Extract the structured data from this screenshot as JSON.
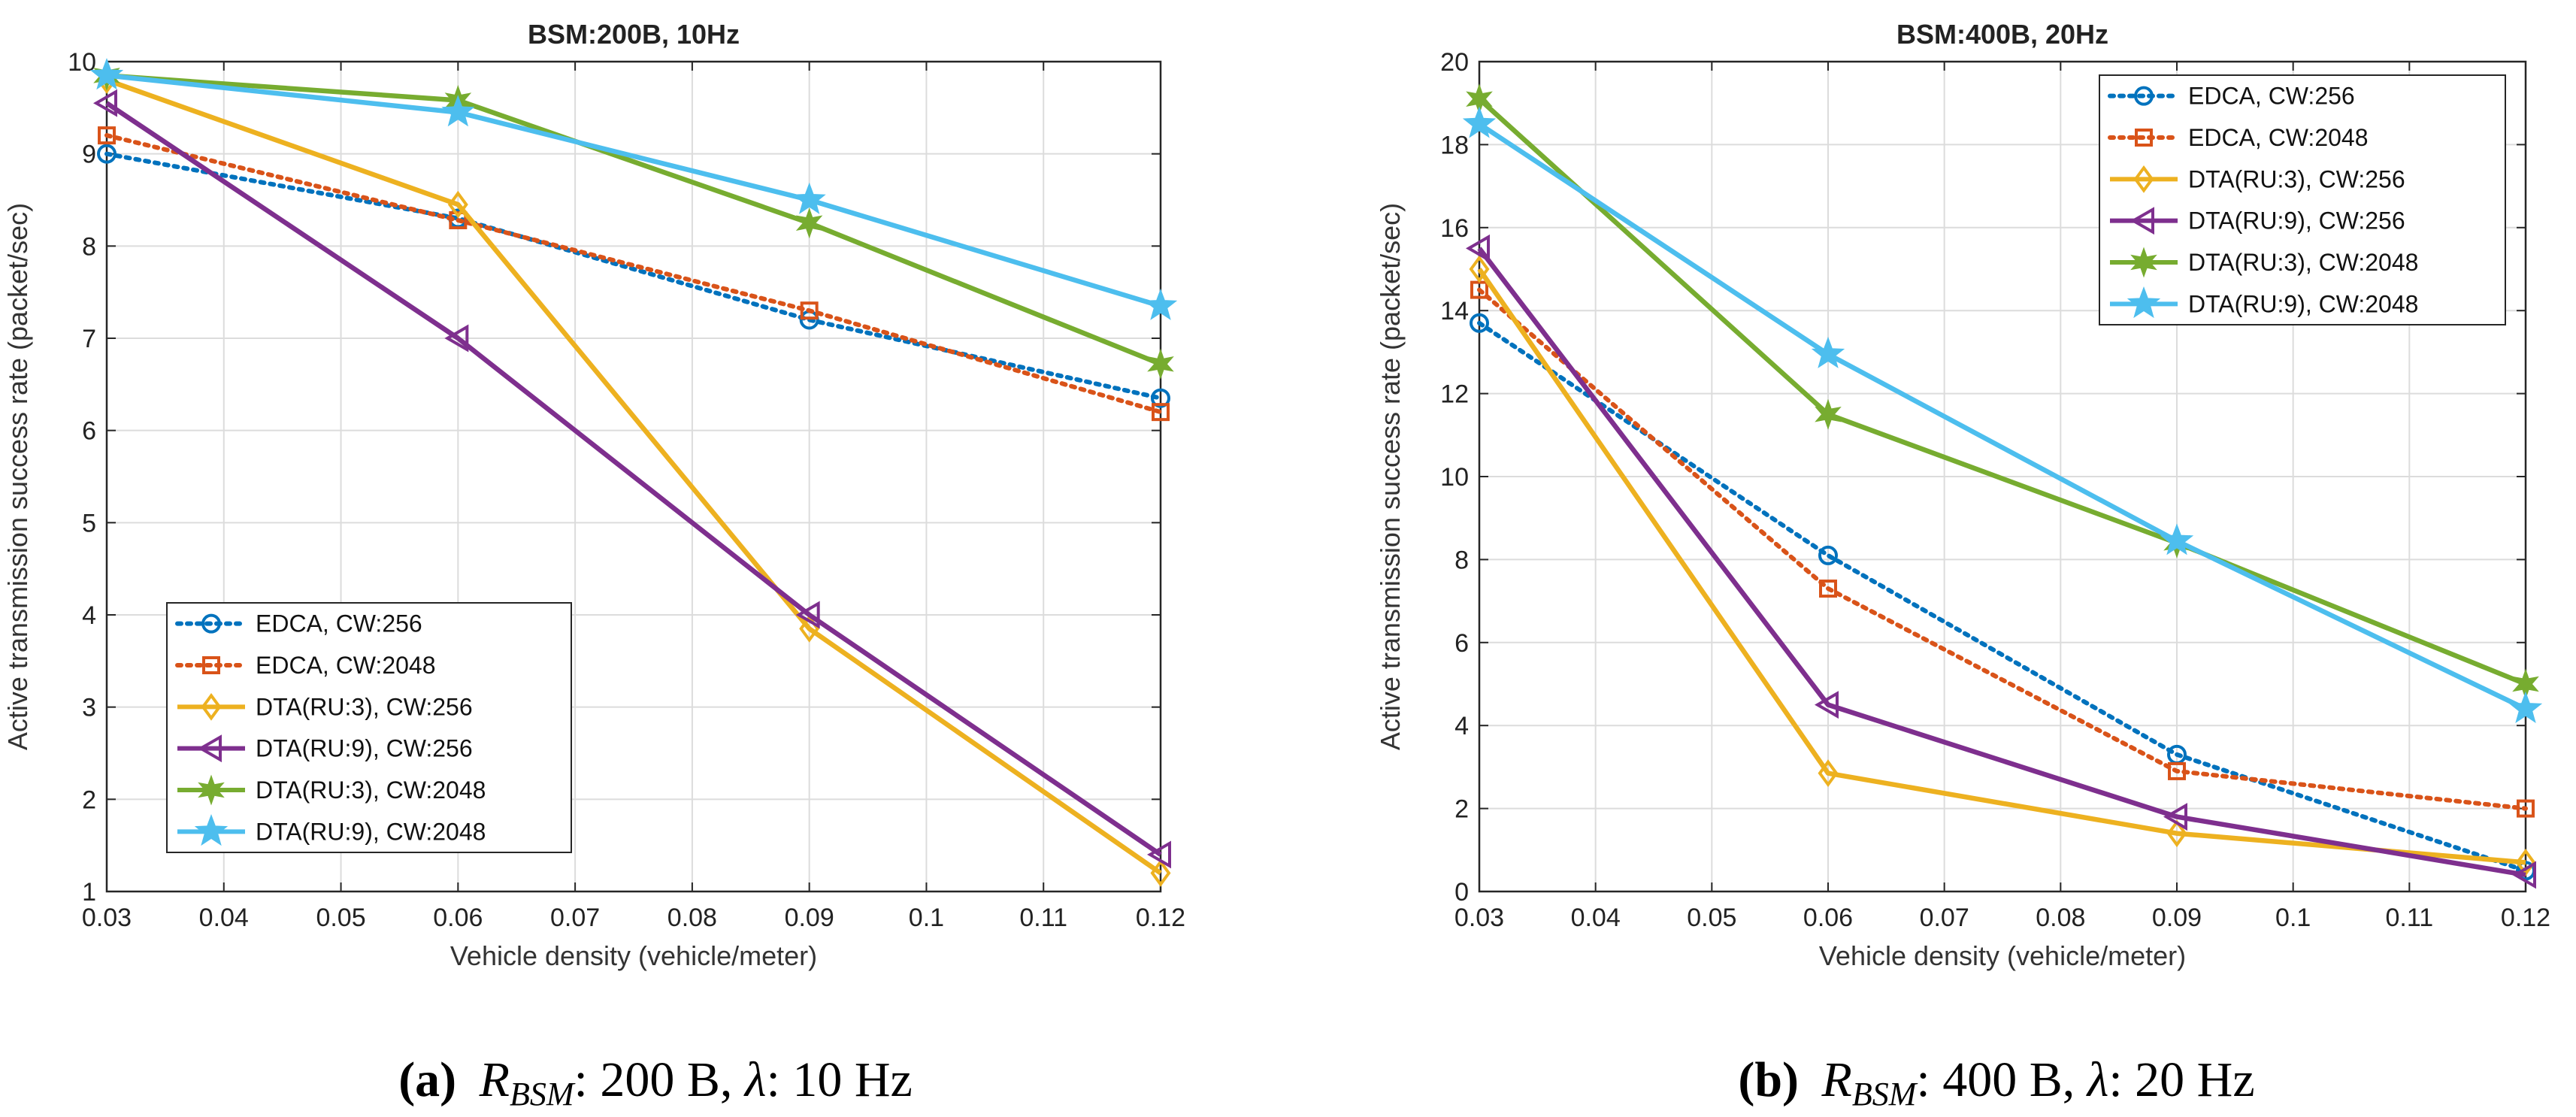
{
  "colors": {
    "EDCA256": "#0072BD",
    "EDCA2048": "#D95319",
    "DTA3_256": "#EDB120",
    "DTA9_256": "#7E2F8E",
    "DTA3_2048": "#77AC30",
    "DTA9_2048": "#4DBEEE"
  },
  "captions": [
    {
      "letter": "(a)",
      "sym": "R",
      "sub": "BSM",
      "rest1": ": 200 B, ",
      "lambda": "λ",
      "rest2": ": 10 Hz"
    },
    {
      "letter": "(b)",
      "sym": "R",
      "sub": "BSM",
      "rest1": ": 400 B, ",
      "lambda": "λ",
      "rest2": ": 20 Hz"
    }
  ],
  "chart_data": [
    {
      "type": "line",
      "title": "BSM:200B, 10Hz",
      "xlabel": "Vehicle density (vehicle/meter)",
      "ylabel": "Active transmission success rate (packet/sec)",
      "xlim": [
        0.03,
        0.12
      ],
      "ylim": [
        1,
        10
      ],
      "xticks": [
        0.03,
        0.04,
        0.05,
        0.06,
        0.07,
        0.08,
        0.09,
        0.1,
        0.11,
        0.12
      ],
      "xtick_labels": [
        "0.03",
        "0.04",
        "0.05",
        "0.06",
        "0.07",
        "0.08",
        "0.09",
        "0.1",
        "0.11",
        "0.12"
      ],
      "yticks": [
        1,
        2,
        3,
        4,
        5,
        6,
        7,
        8,
        9,
        10
      ],
      "ytick_labels": [
        "1",
        "2",
        "3",
        "4",
        "5",
        "6",
        "7",
        "8",
        "9",
        "10"
      ],
      "grid": true,
      "legend_position": "bottom-left",
      "x": [
        0.03,
        0.06,
        0.09,
        0.12
      ],
      "series": [
        {
          "name": "EDCA, CW:256",
          "values": [
            9.0,
            8.3,
            7.2,
            6.35
          ],
          "color": "#0072BD",
          "dash": "dotted",
          "marker": "circle"
        },
        {
          "name": "EDCA, CW:2048",
          "values": [
            9.2,
            8.28,
            7.3,
            6.2
          ],
          "color": "#D95319",
          "dash": "dotted",
          "marker": "square"
        },
        {
          "name": "DTA(RU:3), CW:256",
          "values": [
            9.8,
            8.45,
            3.85,
            1.2
          ],
          "color": "#EDB120",
          "dash": "solid",
          "marker": "diamond"
        },
        {
          "name": "DTA(RU:9), CW:256",
          "values": [
            9.55,
            7.0,
            4.0,
            1.4
          ],
          "color": "#7E2F8E",
          "dash": "solid",
          "marker": "triangle-left"
        },
        {
          "name": "DTA(RU:3), CW:2048",
          "values": [
            9.85,
            9.58,
            8.25,
            6.72
          ],
          "color": "#77AC30",
          "dash": "solid",
          "marker": "star6"
        },
        {
          "name": "DTA(RU:9), CW:2048",
          "values": [
            9.85,
            9.45,
            8.5,
            7.35
          ],
          "color": "#4DBEEE",
          "dash": "solid",
          "marker": "star5"
        }
      ]
    },
    {
      "type": "line",
      "title": "BSM:400B, 20Hz",
      "xlabel": "Vehicle density (vehicle/meter)",
      "ylabel": "Active transmission success rate (packet/sec)",
      "xlim": [
        0.03,
        0.12
      ],
      "ylim": [
        0,
        20
      ],
      "xticks": [
        0.03,
        0.04,
        0.05,
        0.06,
        0.07,
        0.08,
        0.09,
        0.1,
        0.11,
        0.12
      ],
      "xtick_labels": [
        "0.03",
        "0.04",
        "0.05",
        "0.06",
        "0.07",
        "0.08",
        "0.09",
        "0.1",
        "0.11",
        "0.12"
      ],
      "yticks": [
        0,
        2,
        4,
        6,
        8,
        10,
        12,
        14,
        16,
        18,
        20
      ],
      "ytick_labels": [
        "0",
        "2",
        "4",
        "6",
        "8",
        "10",
        "12",
        "14",
        "16",
        "18",
        "20"
      ],
      "grid": true,
      "legend_position": "top-right",
      "x": [
        0.03,
        0.06,
        0.09,
        0.12
      ],
      "series": [
        {
          "name": "EDCA, CW:256",
          "values": [
            13.7,
            8.1,
            3.3,
            0.5
          ],
          "color": "#0072BD",
          "dash": "dotted",
          "marker": "circle"
        },
        {
          "name": "EDCA, CW:2048",
          "values": [
            14.5,
            7.3,
            2.9,
            2.0
          ],
          "color": "#D95319",
          "dash": "dotted",
          "marker": "square"
        },
        {
          "name": "DTA(RU:3), CW:256",
          "values": [
            15.0,
            2.85,
            1.4,
            0.7
          ],
          "color": "#EDB120",
          "dash": "solid",
          "marker": "diamond"
        },
        {
          "name": "DTA(RU:9), CW:256",
          "values": [
            15.5,
            4.5,
            1.8,
            0.4
          ],
          "color": "#7E2F8E",
          "dash": "solid",
          "marker": "triangle-left"
        },
        {
          "name": "DTA(RU:3), CW:2048",
          "values": [
            19.1,
            11.5,
            8.4,
            5.0
          ],
          "color": "#77AC30",
          "dash": "solid",
          "marker": "star6"
        },
        {
          "name": "DTA(RU:9), CW:2048",
          "values": [
            18.5,
            12.95,
            8.45,
            4.4
          ],
          "color": "#4DBEEE",
          "dash": "solid",
          "marker": "star5"
        }
      ]
    }
  ]
}
